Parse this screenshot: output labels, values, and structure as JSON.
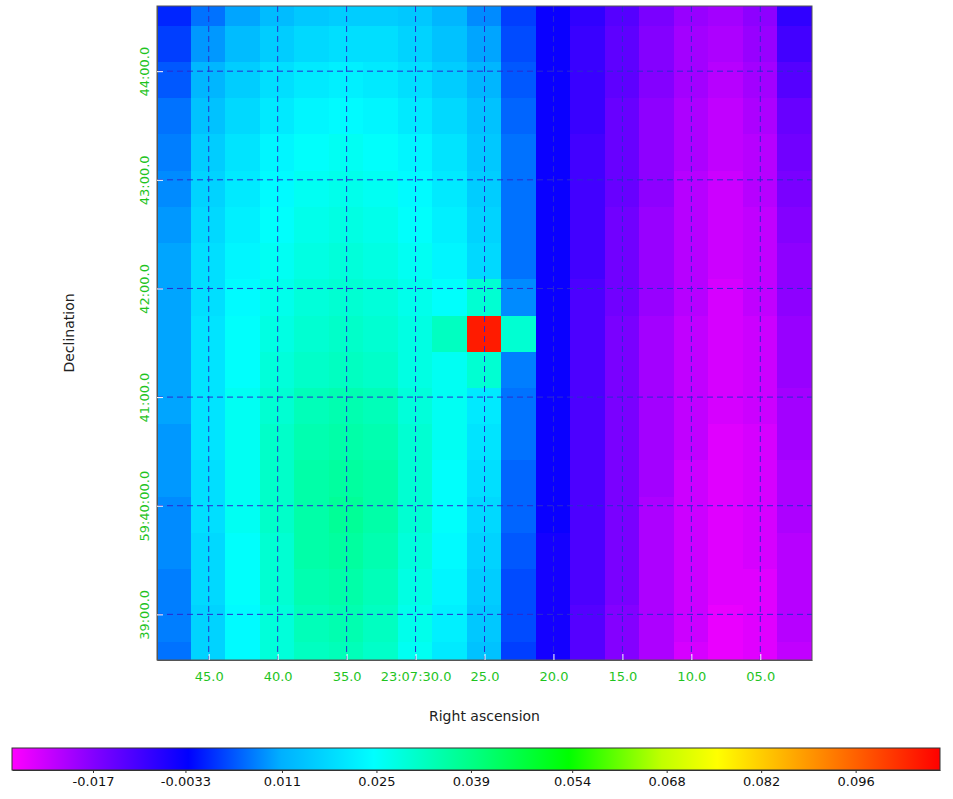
{
  "chart_data": {
    "type": "heatmap",
    "x_label": "Right ascension",
    "y_label": "Declination",
    "x": [
      47.5,
      45,
      42.5,
      40,
      37.5,
      35,
      32.5,
      30,
      27.5,
      25,
      22.5,
      20,
      17.5,
      15,
      12.5,
      10,
      7.5,
      5,
      2.5
    ],
    "y": [
      44.58,
      44.25,
      43.91,
      43.58,
      43.25,
      42.91,
      42.58,
      42.25,
      41.91,
      41.58,
      41.25,
      40.91,
      40.58,
      40.25,
      39.91,
      39.58,
      39.25,
      38.91,
      38.58
    ],
    "cells": [
      [
        0.0,
        0.006,
        0.01,
        0.013,
        0.015,
        0.016,
        0.016,
        0.015,
        0.012,
        0.008,
        0.002,
        -0.004,
        -0.008,
        -0.012,
        -0.016,
        -0.019,
        -0.02,
        -0.018,
        -0.008
      ],
      [
        0.002,
        0.009,
        0.013,
        0.016,
        0.018,
        0.019,
        0.019,
        0.017,
        0.014,
        0.01,
        0.003,
        -0.004,
        -0.009,
        -0.013,
        -0.017,
        -0.02,
        -0.021,
        -0.019,
        -0.01
      ],
      [
        0.004,
        0.012,
        0.016,
        0.019,
        0.021,
        0.022,
        0.021,
        0.019,
        0.016,
        0.012,
        0.004,
        -0.004,
        -0.009,
        -0.013,
        -0.017,
        -0.02,
        -0.022,
        -0.02,
        -0.012
      ],
      [
        0.006,
        0.014,
        0.018,
        0.021,
        0.023,
        0.024,
        0.023,
        0.021,
        0.018,
        0.014,
        0.005,
        -0.004,
        -0.009,
        -0.014,
        -0.018,
        -0.021,
        -0.023,
        -0.021,
        -0.014
      ],
      [
        0.007,
        0.016,
        0.02,
        0.023,
        0.025,
        0.026,
        0.025,
        0.023,
        0.02,
        0.015,
        0.006,
        -0.004,
        -0.01,
        -0.014,
        -0.018,
        -0.021,
        -0.023,
        -0.022,
        -0.015
      ],
      [
        0.008,
        0.017,
        0.021,
        0.024,
        0.026,
        0.027,
        0.026,
        0.024,
        0.021,
        0.016,
        0.006,
        -0.004,
        -0.01,
        -0.014,
        -0.018,
        -0.022,
        -0.024,
        -0.022,
        -0.016
      ],
      [
        0.009,
        0.018,
        0.022,
        0.025,
        0.027,
        0.028,
        0.027,
        0.025,
        0.022,
        0.017,
        0.006,
        -0.004,
        -0.01,
        -0.015,
        -0.019,
        -0.022,
        -0.024,
        -0.023,
        -0.017
      ],
      [
        0.01,
        0.019,
        0.023,
        0.026,
        0.028,
        0.029,
        0.028,
        0.026,
        0.023,
        0.018,
        0.006,
        -0.004,
        -0.01,
        -0.015,
        -0.019,
        -0.022,
        -0.024,
        -0.023,
        -0.018
      ],
      [
        0.01,
        0.019,
        0.024,
        0.027,
        0.029,
        0.03,
        0.029,
        0.027,
        0.025,
        0.03,
        0.008,
        -0.004,
        -0.011,
        -0.015,
        -0.019,
        -0.022,
        -0.025,
        -0.023,
        -0.018
      ],
      [
        0.01,
        0.02,
        0.025,
        0.028,
        0.03,
        0.031,
        0.03,
        0.028,
        0.032,
        0.105,
        0.03,
        -0.004,
        -0.011,
        -0.016,
        -0.02,
        -0.023,
        -0.025,
        -0.024,
        -0.019
      ],
      [
        0.01,
        0.02,
        0.025,
        0.029,
        0.031,
        0.032,
        0.031,
        0.028,
        0.026,
        0.03,
        0.007,
        -0.004,
        -0.011,
        -0.016,
        -0.02,
        -0.023,
        -0.025,
        -0.024,
        -0.019
      ],
      [
        0.01,
        0.02,
        0.026,
        0.03,
        0.033,
        0.034,
        0.033,
        0.029,
        0.026,
        0.021,
        0.006,
        -0.004,
        -0.011,
        -0.016,
        -0.02,
        -0.023,
        -0.025,
        -0.024,
        -0.02
      ],
      [
        0.009,
        0.02,
        0.026,
        0.031,
        0.034,
        0.035,
        0.034,
        0.03,
        0.026,
        0.02,
        0.006,
        -0.004,
        -0.011,
        -0.016,
        -0.02,
        -0.023,
        -0.026,
        -0.025,
        -0.02
      ],
      [
        0.009,
        0.019,
        0.026,
        0.031,
        0.035,
        0.036,
        0.035,
        0.03,
        0.025,
        0.019,
        0.005,
        -0.004,
        -0.011,
        -0.016,
        -0.02,
        -0.024,
        -0.026,
        -0.025,
        -0.021
      ],
      [
        0.008,
        0.019,
        0.026,
        0.031,
        0.035,
        0.037,
        0.035,
        0.03,
        0.025,
        0.018,
        0.005,
        -0.004,
        -0.011,
        -0.016,
        -0.021,
        -0.024,
        -0.026,
        -0.025,
        -0.021
      ],
      [
        0.008,
        0.018,
        0.025,
        0.03,
        0.035,
        0.036,
        0.034,
        0.029,
        0.024,
        0.017,
        0.004,
        -0.005,
        -0.011,
        -0.016,
        -0.021,
        -0.024,
        -0.026,
        -0.025,
        -0.022
      ],
      [
        0.007,
        0.018,
        0.025,
        0.03,
        0.034,
        0.035,
        0.033,
        0.028,
        0.023,
        0.016,
        0.003,
        -0.005,
        -0.011,
        -0.016,
        -0.021,
        -0.024,
        -0.026,
        -0.026,
        -0.022
      ],
      [
        0.007,
        0.017,
        0.024,
        0.029,
        0.033,
        0.034,
        0.032,
        0.027,
        0.022,
        0.015,
        0.003,
        -0.005,
        -0.012,
        -0.017,
        -0.021,
        -0.024,
        -0.027,
        -0.026,
        -0.022
      ],
      [
        0.006,
        0.017,
        0.024,
        0.029,
        0.032,
        0.033,
        0.031,
        0.026,
        0.021,
        0.014,
        0.002,
        -0.005,
        -0.012,
        -0.017,
        -0.021,
        -0.025,
        -0.027,
        -0.026,
        -0.023
      ]
    ],
    "xlim": [
      48.75,
      1.25
    ],
    "xticks": [
      {
        "value": 45,
        "label": "45.0"
      },
      {
        "value": 40,
        "label": "40.0"
      },
      {
        "value": 35,
        "label": "35.0"
      },
      {
        "value": 30,
        "label": "23:07:30.0"
      },
      {
        "value": 25,
        "label": "25.0"
      },
      {
        "value": 20,
        "label": "20.0"
      },
      {
        "value": 15,
        "label": "15.0"
      },
      {
        "value": 10,
        "label": "10.0"
      },
      {
        "value": 5,
        "label": "05.0"
      }
    ],
    "ylim": [
      38.58,
      44.6
    ],
    "yticks": [
      {
        "value": 39,
        "label": "39:00.0"
      },
      {
        "value": 40,
        "label": "59:40:00.0"
      },
      {
        "value": 41,
        "label": "41:00.0"
      },
      {
        "value": 42,
        "label": "42:00.0"
      },
      {
        "value": 43,
        "label": "43:00.0"
      },
      {
        "value": 44,
        "label": "44:00.0"
      }
    ],
    "grid": true,
    "colorbar": {
      "range": [
        -0.029,
        0.1085
      ],
      "ticks": [
        -0.017,
        -0.0033,
        0.011,
        0.025,
        0.039,
        0.054,
        0.068,
        0.082,
        0.096
      ]
    }
  }
}
